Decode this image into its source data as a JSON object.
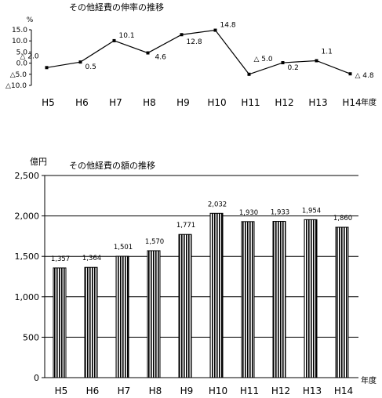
{
  "chart_data": [
    {
      "type": "line",
      "title": "その他経費の伸率の推移",
      "unit_label": "%",
      "xlabel": "年度",
      "categories": [
        "H5",
        "H6",
        "H7",
        "H8",
        "H9",
        "H10",
        "H11",
        "H12",
        "H13",
        "H14"
      ],
      "values": [
        -2.0,
        0.5,
        10.1,
        4.6,
        12.8,
        14.8,
        -5.0,
        0.2,
        1.1,
        -4.8
      ],
      "data_labels": [
        "△ 2.0",
        "0.5",
        "10.1",
        "4.6",
        "12.8",
        "14.8",
        "△ 5.0",
        "0.2",
        "1.1",
        "△ 4.8"
      ],
      "ytick_labels": [
        "15.0",
        "10.0",
        "5.0",
        "0.0",
        "△5.0",
        "△10.0"
      ],
      "yticks": [
        15,
        10,
        5,
        0,
        -5,
        -10
      ],
      "ylim": [
        -10,
        15
      ],
      "grid": false,
      "legend": "none"
    },
    {
      "type": "bar",
      "title": "その他経費の額の推移",
      "unit_label": "億円",
      "xlabel": "年度",
      "categories": [
        "H5",
        "H6",
        "H7",
        "H8",
        "H9",
        "H10",
        "H11",
        "H12",
        "H13",
        "H14"
      ],
      "values": [
        1357,
        1364,
        1501,
        1570,
        1771,
        2032,
        1930,
        1933,
        1954,
        1860
      ],
      "data_labels": [
        "1,357",
        "1,364",
        "1,501",
        "1,570",
        "1,771",
        "2,032",
        "1,930",
        "1,933",
        "1,954",
        "1,860"
      ],
      "ytick_labels": [
        "2,500",
        "2,000",
        "1,500",
        "1,000",
        "500",
        "0"
      ],
      "yticks": [
        2500,
        2000,
        1500,
        1000,
        500,
        0
      ],
      "ylim": [
        0,
        2500
      ],
      "grid": true,
      "legend": "none"
    }
  ]
}
